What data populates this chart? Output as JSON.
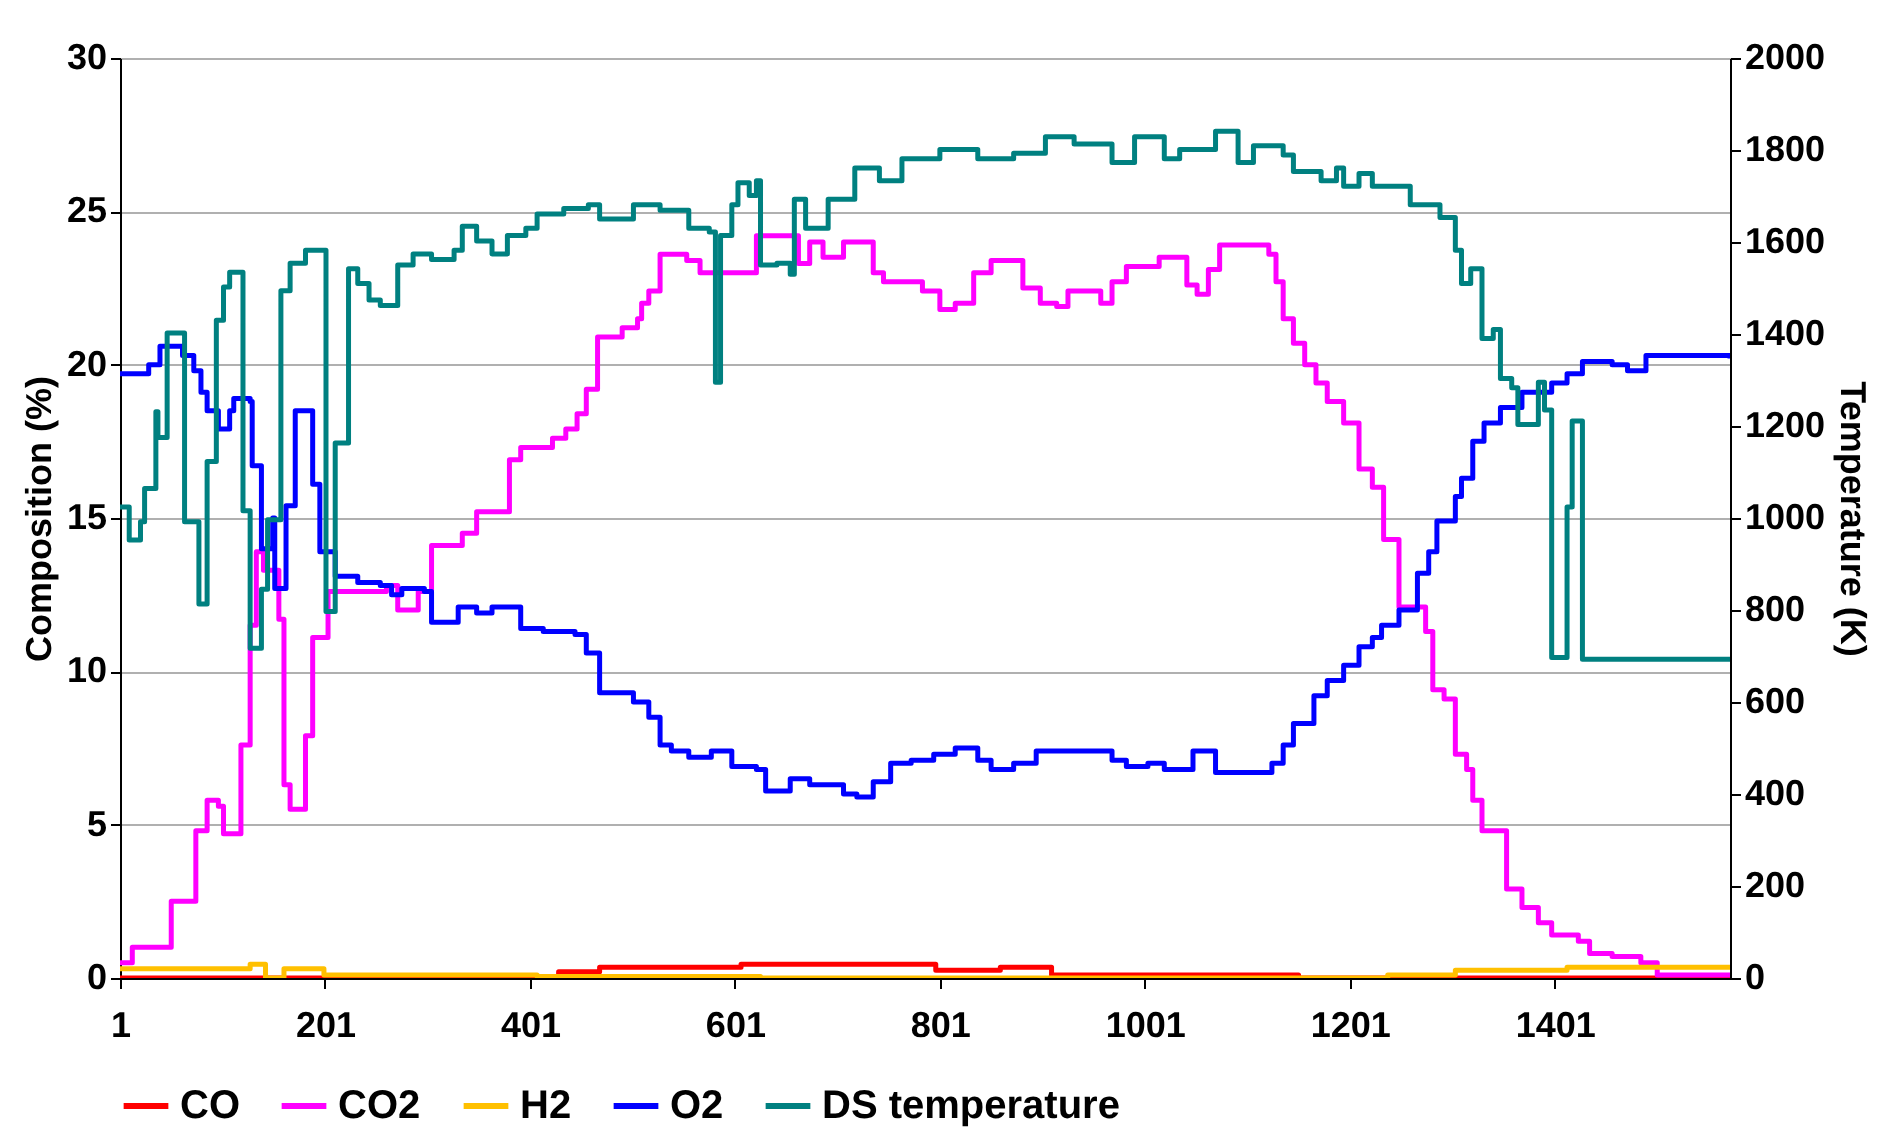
{
  "chart_data": {
    "type": "step",
    "xlabel": null,
    "ylabel": "Composition (%)",
    "y2label": "Temperature (K)",
    "xlim": [
      1,
      1572
    ],
    "xticks": [
      1,
      201,
      401,
      601,
      801,
      1001,
      1201,
      1401
    ],
    "ylim": [
      0,
      30
    ],
    "yticks": [
      0,
      5,
      10,
      15,
      20,
      25,
      30
    ],
    "y2lim": [
      0,
      2000
    ],
    "y2ticks": [
      0,
      200,
      400,
      600,
      800,
      1000,
      1200,
      1400,
      1600,
      1800,
      2000
    ],
    "grid": "y",
    "legend": "bottom",
    "marker": "none",
    "line_style": "solid",
    "series": [
      {
        "name": "CO",
        "color": "#ff0000",
        "x": [
          1,
          408,
          429,
          469,
          607,
          797,
          860,
          910,
          1151,
          1572
        ],
        "values": [
          0,
          0,
          0.2,
          0.35,
          0.45,
          0.25,
          0.35,
          0.1,
          0,
          0
        ]
      },
      {
        "name": "CO2",
        "color": "#ff00ff",
        "x": [
          1,
          13,
          51,
          75,
          86,
          97,
          102,
          119,
          128,
          134,
          141,
          156,
          161,
          167,
          182,
          189,
          204,
          261,
          272,
          292,
          305,
          335,
          349,
          381,
          392,
          423,
          436,
          447,
          456,
          467,
          491,
          506,
          510,
          517,
          528,
          554,
          567,
          622,
          663,
          674,
          687,
          707,
          736,
          746,
          784,
          801,
          816,
          834,
          851,
          882,
          899,
          915,
          926,
          958,
          969,
          983,
          1015,
          1042,
          1052,
          1063,
          1074,
          1122,
          1129,
          1136,
          1146,
          1157,
          1168,
          1179,
          1195,
          1210,
          1223,
          1234,
          1249,
          1275,
          1282,
          1293,
          1304,
          1315,
          1321,
          1330,
          1354,
          1369,
          1385,
          1398,
          1424,
          1435,
          1457,
          1485,
          1501,
          1572
        ],
        "values": [
          0.5,
          1.0,
          2.5,
          4.8,
          5.8,
          5.6,
          4.7,
          7.6,
          11.5,
          13.9,
          13.3,
          11.7,
          6.3,
          5.5,
          7.9,
          11.1,
          12.6,
          12.8,
          12.0,
          12.6,
          14.1,
          14.5,
          15.2,
          16.9,
          17.3,
          17.6,
          17.9,
          18.4,
          19.2,
          20.9,
          21.2,
          21.5,
          22.0,
          22.4,
          23.6,
          23.4,
          23.0,
          24.2,
          23.3,
          24.0,
          23.5,
          24.0,
          23.0,
          22.7,
          22.4,
          21.8,
          22.0,
          23.0,
          23.4,
          22.5,
          22.0,
          21.9,
          22.4,
          22.0,
          22.7,
          23.2,
          23.5,
          22.6,
          22.3,
          23.1,
          23.9,
          23.6,
          22.7,
          21.5,
          20.7,
          20.0,
          19.4,
          18.8,
          18.1,
          16.6,
          16.0,
          14.3,
          12.1,
          11.3,
          9.4,
          9.1,
          7.3,
          6.8,
          5.8,
          4.8,
          2.9,
          2.3,
          1.8,
          1.4,
          1.2,
          0.8,
          0.7,
          0.5,
          0.1,
          0.1
        ]
      },
      {
        "name": "H2",
        "color": "#ffc000",
        "x": [
          1,
          128,
          143,
          161,
          200,
          408,
          626,
          1238,
          1304,
          1413,
          1572
        ],
        "values": [
          0.3,
          0.45,
          0,
          0.3,
          0.1,
          0.05,
          0,
          0.1,
          0.25,
          0.35,
          0.4
        ]
      },
      {
        "name": "O2",
        "color": "#0000ff",
        "x": [
          1,
          29,
          40,
          62,
          73,
          80,
          86,
          97,
          108,
          112,
          128,
          130,
          139,
          150,
          152,
          163,
          172,
          189,
          196,
          211,
          233,
          255,
          266,
          276,
          298,
          305,
          331,
          349,
          364,
          392,
          414,
          445,
          456,
          469,
          502,
          517,
          528,
          539,
          556,
          578,
          598,
          622,
          631,
          655,
          674,
          707,
          720,
          736,
          753,
          773,
          795,
          816,
          838,
          851,
          873,
          895,
          969,
          983,
          1004,
          1020,
          1048,
          1070,
          1125,
          1136,
          1146,
          1166,
          1179,
          1195,
          1210,
          1223,
          1232,
          1249,
          1267,
          1278,
          1286,
          1304,
          1310,
          1321,
          1332,
          1348,
          1369,
          1398,
          1413,
          1428,
          1457,
          1472,
          1490,
          1572
        ],
        "values": [
          19.7,
          20.0,
          20.6,
          20.3,
          19.8,
          19.1,
          18.5,
          17.9,
          18.5,
          18.9,
          18.8,
          16.7,
          14.0,
          15.0,
          12.7,
          15.4,
          18.5,
          16.1,
          13.9,
          13.1,
          12.9,
          12.8,
          12.5,
          12.7,
          12.6,
          11.6,
          12.1,
          11.9,
          12.1,
          11.4,
          11.3,
          11.2,
          10.6,
          9.3,
          9.0,
          8.5,
          7.6,
          7.4,
          7.2,
          7.4,
          6.9,
          6.8,
          6.1,
          6.5,
          6.3,
          6.0,
          5.9,
          6.4,
          7.0,
          7.1,
          7.3,
          7.5,
          7.1,
          6.8,
          7.0,
          7.4,
          7.1,
          6.9,
          7.0,
          6.8,
          7.4,
          6.7,
          7.0,
          7.6,
          8.3,
          9.2,
          9.7,
          10.2,
          10.8,
          11.1,
          11.5,
          12.0,
          13.2,
          13.9,
          14.9,
          15.7,
          16.3,
          17.5,
          18.1,
          18.6,
          19.1,
          19.4,
          19.7,
          20.1,
          20.0,
          19.8,
          20.3,
          20.2
        ]
      },
      {
        "name": "DS temperature",
        "color": "#008080",
        "axis": "y2",
        "x": [
          1,
          10,
          21,
          25,
          36,
          38,
          47,
          64,
          78,
          86,
          95,
          102,
          108,
          121,
          128,
          139,
          145,
          158,
          167,
          182,
          202,
          211,
          224,
          233,
          244,
          255,
          272,
          287,
          305,
          327,
          335,
          349,
          364,
          379,
          397,
          408,
          434,
          458,
          469,
          502,
          528,
          556,
          576,
          582,
          587,
          598,
          604,
          615,
          622,
          626,
          642,
          655,
          659,
          670,
          692,
          718,
          742,
          764,
          801,
          838,
          873,
          904,
          932,
          969,
          991,
          1020,
          1035,
          1070,
          1092,
          1107,
          1136,
          1146,
          1173,
          1188,
          1195,
          1210,
          1223,
          1260,
          1289,
          1304,
          1310,
          1319,
          1330,
          1341,
          1348,
          1359,
          1365,
          1385,
          1391,
          1398,
          1413,
          1418,
          1428,
          1572
        ],
        "values": [
          1024,
          952,
          992,
          1064,
          1231,
          1175,
          1402,
          992,
          813,
          1123,
          1430,
          1502,
          1534,
          1016,
          717,
          845,
          996,
          1494,
          1554,
          1582,
          797,
          1163,
          1542,
          1510,
          1474,
          1462,
          1550,
          1574,
          1562,
          1582,
          1634,
          1602,
          1574,
          1614,
          1630,
          1661,
          1673,
          1681,
          1650,
          1681,
          1669,
          1630,
          1622,
          1295,
          1614,
          1681,
          1729,
          1701,
          1733,
          1550,
          1554,
          1530,
          1693,
          1630,
          1693,
          1761,
          1733,
          1781,
          1801,
          1781,
          1793,
          1829,
          1813,
          1773,
          1829,
          1781,
          1801,
          1841,
          1773,
          1809,
          1789,
          1753,
          1733,
          1761,
          1721,
          1749,
          1721,
          1681,
          1653,
          1582,
          1510,
          1542,
          1390,
          1410,
          1303,
          1283,
          1203,
          1295,
          1235,
          697,
          1024,
          1211,
          693,
          693
        ]
      }
    ]
  }
}
